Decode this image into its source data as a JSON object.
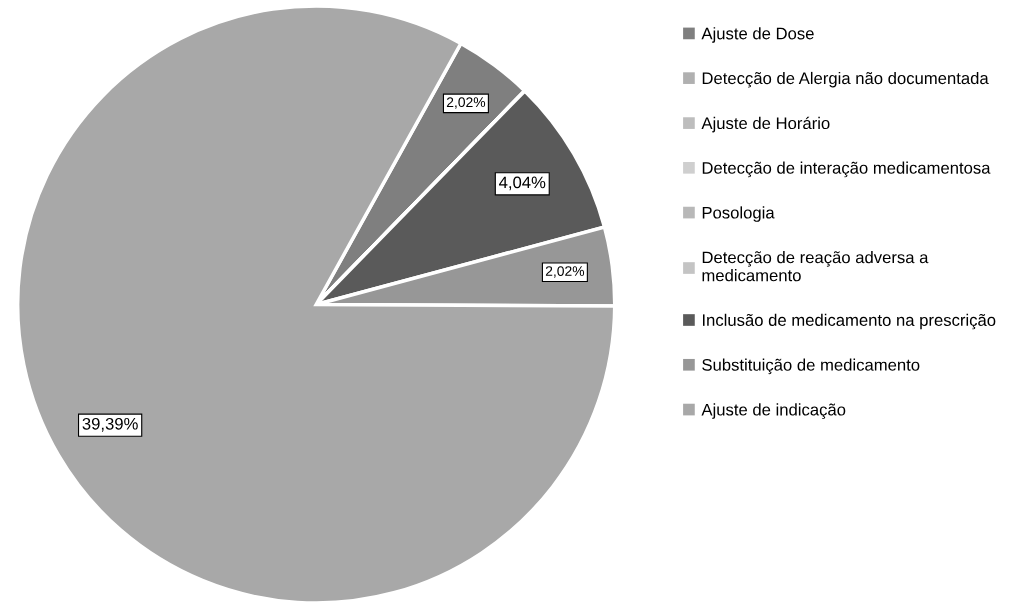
{
  "chart_data": {
    "type": "pie",
    "categories": [
      "Ajuste de Dose",
      "Detecção de Alergia não documentada",
      "Ajuste de Horário",
      "Detecção de interação medicamentosa",
      "Posologia",
      "Detecção de reação adversa a medicamento",
      "Inclusão de medicamento na prescrição",
      "Substituição de medicamento",
      "Ajuste de indicação"
    ],
    "values": [
      2.02,
      0,
      0,
      0,
      0,
      0,
      4.04,
      2.02,
      39.39
    ],
    "colors": [
      "#7f7f7f",
      "#b0b0b0",
      "#bdbdbd",
      "#cfcfcf",
      "#b8b8b8",
      "#c4c4c4",
      "#5a5a5a",
      "#979797",
      "#a8a8a8"
    ],
    "value_labels": [
      "2,02%",
      null,
      null,
      null,
      null,
      null,
      "4,04%",
      "2,02%",
      "39,39%"
    ],
    "legend": "right"
  }
}
